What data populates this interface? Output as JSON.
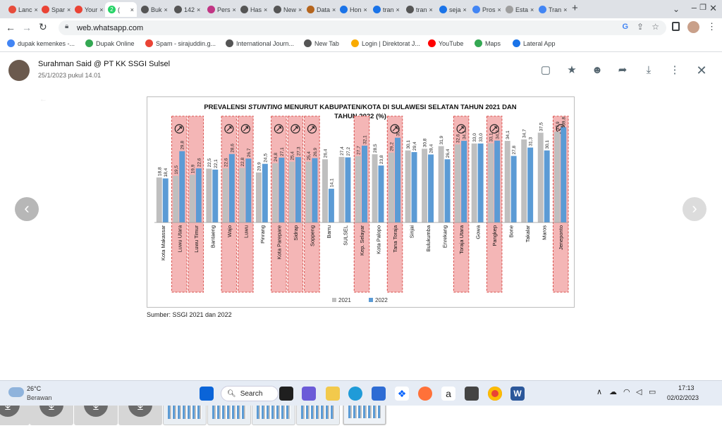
{
  "browser": {
    "tabs": [
      {
        "label": "Lanc",
        "color": "#e74c3c"
      },
      {
        "label": "Spar",
        "color": "#ea4335"
      },
      {
        "label": "Your",
        "color": "#ea4335"
      },
      {
        "label": "(",
        "color": "#25d366",
        "badge": "2"
      },
      {
        "label": "Buk",
        "color": "#555555"
      },
      {
        "label": "142",
        "color": "#555555"
      },
      {
        "label": "Pers",
        "color": "#c13584"
      },
      {
        "label": "Has",
        "color": "#555555"
      },
      {
        "label": "New",
        "color": "#555555"
      },
      {
        "label": "Data",
        "color": "#b5651d"
      },
      {
        "label": "Hon",
        "color": "#1a73e8"
      },
      {
        "label": "tran",
        "color": "#1a73e8"
      },
      {
        "label": "tran",
        "color": "#555555"
      },
      {
        "label": "seja",
        "color": "#1a73e8"
      },
      {
        "label": "Pros",
        "color": "#4285f4"
      },
      {
        "label": "Esta",
        "color": "#9e9e9e"
      },
      {
        "label": "Tran",
        "color": "#4285f4"
      }
    ],
    "new_tab": "+",
    "url": "web.whatsapp.com",
    "bookmarks": [
      {
        "label": "dupak kemenkes -...",
        "color": "#4285f4"
      },
      {
        "label": "Dupak Online",
        "color": "#34a853"
      },
      {
        "label": "Spam - sirajuddin.g...",
        "color": "#ea4335"
      },
      {
        "label": "International Journ...",
        "color": "#555555"
      },
      {
        "label": "New Tab",
        "color": "#555555"
      },
      {
        "label": "Login | Direktorat J...",
        "color": "#f9ab00"
      },
      {
        "label": "YouTube",
        "color": "#ff0000"
      },
      {
        "label": "Maps",
        "color": "#34a853"
      },
      {
        "label": "Lateral App",
        "color": "#1a73e8"
      }
    ]
  },
  "viewer": {
    "sender": "Surahman Said @ PT KK SSGI Sulsel",
    "date": "25/1/2023 pukul 14.01",
    "source": "Sumber: SSGI 2021 dan 2022"
  },
  "chart_data": {
    "type": "bar",
    "title_line1_pre": "PREVALENSI ",
    "title_line1_em": "STUNTING",
    "title_line1_post": " MENURUT KABUPATEN/KOTA DI SULAWESI SELATAN TAHUN 2021 DAN",
    "title_line2": "TAHUN 2022 (%)",
    "categories": [
      "Kota Makassar",
      "Luwu Utara",
      "Luwu Timur",
      "Bantaeng",
      "Wajo",
      "Luwu",
      "Pinrang",
      "Kota Parepare",
      "Sidrap",
      "Soppeng",
      "Barru",
      "SULSEL",
      "Kep. Selayar",
      "Kota Palopo",
      "Tana Toraja",
      "Sinjai",
      "Bulukumba",
      "Enrekang",
      "Toraja Utara",
      "Gowa",
      "Pangkep",
      "Bone",
      "Takalar",
      "Maros",
      "Jeneponto"
    ],
    "series": [
      {
        "name": "2021",
        "color": "#bfbfbf",
        "values": [
          18.8,
          19.5,
          19.9,
          22.5,
          22.6,
          22.8,
          20.9,
          24.8,
          25.4,
          25.4,
          26.4,
          27.4,
          27.7,
          28.5,
          29.2,
          30.1,
          30.8,
          31.9,
          32.6,
          33.0,
          33.1,
          34.1,
          34.7,
          37.5,
          37.9
        ],
        "labels": [
          "18,8",
          "19,5",
          "19,9",
          "22,5",
          "22,6",
          "22,8",
          "20,9",
          "24,8",
          "25,4",
          "25,4",
          "26,4",
          "27,4",
          "27,7",
          "28,5",
          "29,2",
          "30,1",
          "30,8",
          "31,9",
          "32,6",
          "33,0",
          "33,1",
          "34,1",
          "34,7",
          "37,5",
          "37,9"
        ]
      },
      {
        "name": "2022",
        "color": "#5b9bd5",
        "values": [
          18.4,
          29.8,
          22.6,
          22.1,
          28.6,
          26.7,
          24.5,
          27.1,
          27.3,
          26.9,
          14.1,
          27.2,
          32.1,
          23.8,
          35.4,
          29.4,
          28.4,
          26.4,
          34.1,
          33.0,
          34.2,
          27.8,
          31.3,
          30.1,
          39.8
        ],
        "labels": [
          "18,4",
          "29,8",
          "22,6",
          "22,1",
          "28,6",
          "26,7",
          "24,5",
          "27,1",
          "27,3",
          "26,9",
          "14,1",
          "27,2",
          "32,1",
          "23,8",
          "35,4",
          "29,4",
          "28,4",
          "26,4",
          "34,1",
          "33,0",
          "34,2",
          "27,8",
          "31,3",
          "30,1",
          "39,8"
        ]
      }
    ],
    "highlighted": [
      "Luwu Utara",
      "Luwu Timur",
      "Wajo",
      "Luwu",
      "Kota Parepare",
      "Sidrap",
      "Soppeng",
      "Kep. Selayar",
      "Tana Toraja",
      "Toraja Utara",
      "Pangkep",
      "Jeneponto"
    ],
    "arrow_marks": [
      "Luwu Utara",
      "Wajo",
      "Luwu",
      "Kota Parepare",
      "Sidrap",
      "Soppeng",
      "Tana Toraja",
      "Toraja Utara",
      "Pangkep",
      "Jeneponto"
    ],
    "ylim": [
      0,
      45
    ],
    "grid": false,
    "legend_position": "bottom-center",
    "highlight_color": "#f4b6b6"
  },
  "thumbnails": [
    {
      "kind": "download"
    },
    {
      "kind": "download"
    },
    {
      "kind": "download"
    },
    {
      "kind": "download"
    },
    {
      "kind": "download"
    },
    {
      "kind": "image"
    },
    {
      "kind": "image"
    },
    {
      "kind": "image"
    },
    {
      "kind": "image"
    },
    {
      "kind": "image",
      "selected": true
    }
  ],
  "taskbar": {
    "weather_temp": "26°C",
    "weather_desc": "Berawan",
    "search_label": "Search",
    "time": "17:13",
    "date": "02/02/2023"
  }
}
